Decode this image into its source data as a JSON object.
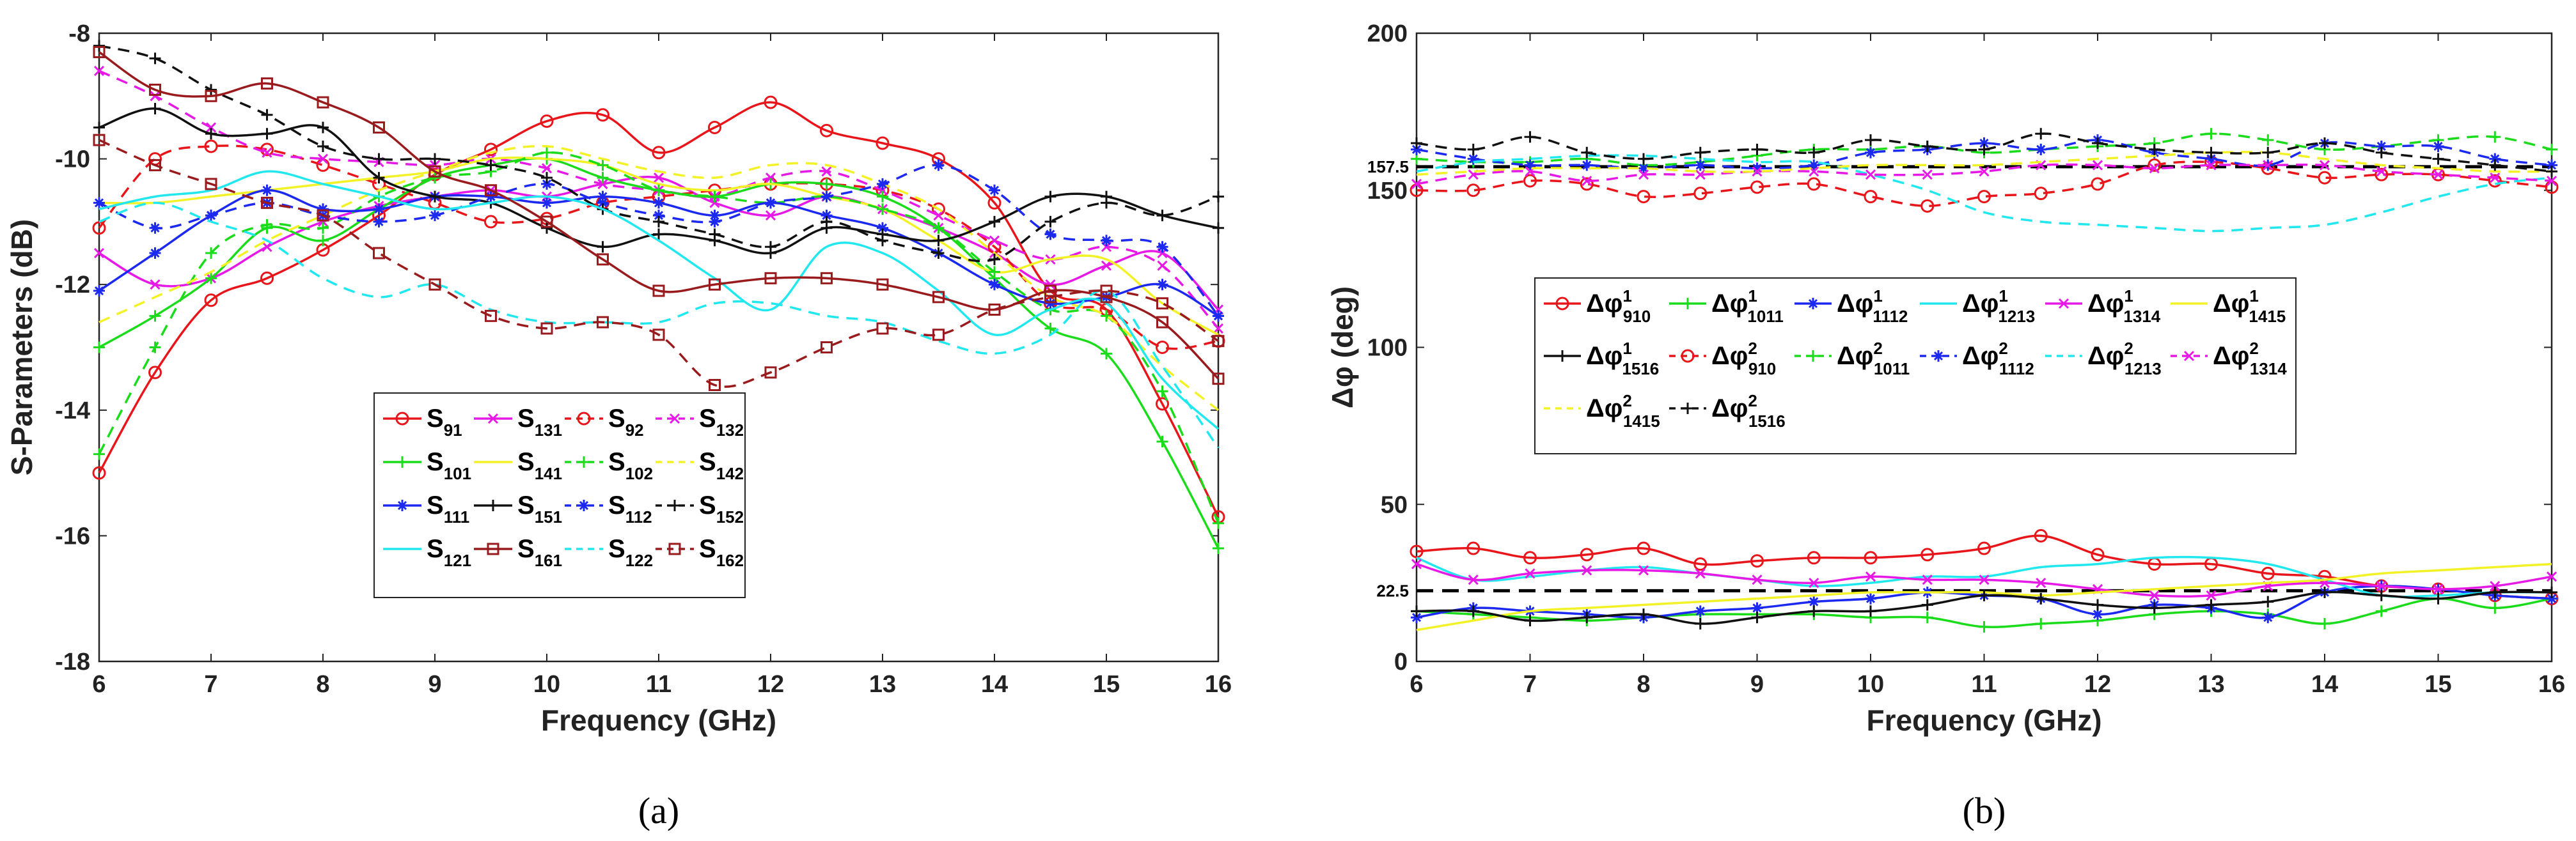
{
  "chart_data": [
    {
      "type": "line",
      "panel_label": "(a)",
      "xlabel": "Frequency (GHz)",
      "ylabel": "S-Parameters (dB)",
      "xlim": [
        6,
        16
      ],
      "ylim": [
        -18,
        -8
      ],
      "xticks": [
        6,
        7,
        8,
        9,
        10,
        11,
        12,
        13,
        14,
        15,
        16
      ],
      "yticks": [
        -18,
        -16,
        -14,
        -12,
        -10,
        -8
      ],
      "legend_position": "bottom-center",
      "x": [
        6,
        6.5,
        7,
        7.5,
        8,
        8.5,
        9,
        9.5,
        10,
        10.5,
        11,
        11.5,
        12,
        12.5,
        13,
        13.5,
        14,
        14.5,
        15,
        15.5,
        16
      ],
      "series": [
        {
          "name": "S",
          "sub": "91",
          "color": "#e8161b",
          "dash": "solid",
          "marker": "circle",
          "values": [
            -15.0,
            -13.4,
            -12.25,
            -11.9,
            -11.45,
            -10.9,
            -10.25,
            -9.85,
            -9.4,
            -9.3,
            -9.9,
            -9.5,
            -9.1,
            -9.55,
            -9.75,
            -10.0,
            -10.7,
            -12.1,
            -12.4,
            -13.9,
            -15.7
          ]
        },
        {
          "name": "S",
          "sub": "131",
          "color": "#e619e6",
          "dash": "solid",
          "marker": "x",
          "values": [
            -11.5,
            -12.0,
            -11.9,
            -11.4,
            -11.0,
            -10.75,
            -10.6,
            -10.5,
            -10.6,
            -10.4,
            -10.3,
            -10.7,
            -10.9,
            -10.6,
            -10.8,
            -11.1,
            -11.5,
            -12.0,
            -11.7,
            -11.5,
            -12.4
          ]
        },
        {
          "name": "S",
          "sub": "92",
          "color": "#e8161b",
          "dash": "dashed",
          "marker": "circle",
          "values": [
            -11.1,
            -10.0,
            -9.8,
            -9.85,
            -10.1,
            -10.4,
            -10.7,
            -11.0,
            -10.95,
            -10.7,
            -10.6,
            -10.5,
            -10.4,
            -10.4,
            -10.5,
            -10.8,
            -11.4,
            -12.3,
            -12.4,
            -13.0,
            -12.9
          ]
        },
        {
          "name": "S",
          "sub": "132",
          "color": "#e619e6",
          "dash": "dashed",
          "marker": "x",
          "values": [
            -8.6,
            -9.0,
            -9.5,
            -9.9,
            -10.0,
            -10.05,
            -10.1,
            -10.0,
            -10.15,
            -10.4,
            -10.5,
            -10.6,
            -10.3,
            -10.2,
            -10.5,
            -10.9,
            -11.3,
            -11.6,
            -11.4,
            -11.7,
            -12.7
          ]
        },
        {
          "name": "S",
          "sub": "101",
          "color": "#1adc1a",
          "dash": "solid",
          "marker": "plus",
          "values": [
            -13.0,
            -12.5,
            -11.9,
            -11.1,
            -11.3,
            -10.8,
            -10.3,
            -10.1,
            -10.0,
            -10.3,
            -10.5,
            -10.6,
            -10.4,
            -10.4,
            -10.6,
            -11.1,
            -11.9,
            -12.7,
            -13.1,
            -14.5,
            -16.2
          ]
        },
        {
          "name": "S",
          "sub": "141",
          "color": "#f2f226",
          "dash": "solid",
          "marker": "none",
          "values": [
            -10.7,
            -10.7,
            -10.6,
            -10.5,
            -10.4,
            -10.3,
            -10.2,
            -10.0,
            -10.0,
            -10.1,
            -10.4,
            -10.5,
            -10.4,
            -10.6,
            -10.8,
            -11.3,
            -11.8,
            -11.6,
            -11.6,
            -12.3,
            -12.8
          ]
        },
        {
          "name": "S",
          "sub": "102",
          "color": "#1adc1a",
          "dash": "dashed",
          "marker": "plus",
          "values": [
            -14.7,
            -13.0,
            -11.5,
            -11.05,
            -11.1,
            -10.6,
            -10.3,
            -10.2,
            -9.9,
            -10.1,
            -10.5,
            -10.6,
            -10.7,
            -10.6,
            -10.8,
            -11.1,
            -11.8,
            -12.4,
            -12.5,
            -13.7,
            -15.8
          ]
        },
        {
          "name": "S",
          "sub": "142",
          "color": "#f2f226",
          "dash": "dashed",
          "marker": "none",
          "values": [
            -12.6,
            -12.2,
            -11.8,
            -11.3,
            -10.9,
            -10.5,
            -10.2,
            -9.9,
            -9.8,
            -10.0,
            -10.2,
            -10.3,
            -10.1,
            -10.1,
            -10.4,
            -10.8,
            -11.5,
            -12.2,
            -12.5,
            -13.3,
            -14.0
          ]
        },
        {
          "name": "S",
          "sub": "111",
          "color": "#1c29f0",
          "dash": "solid",
          "marker": "asterisk",
          "values": [
            -12.1,
            -11.5,
            -10.9,
            -10.5,
            -10.8,
            -10.8,
            -10.6,
            -10.6,
            -10.7,
            -10.6,
            -10.7,
            -10.9,
            -10.7,
            -10.9,
            -11.1,
            -11.5,
            -12.0,
            -12.3,
            -12.2,
            -12.0,
            -12.5
          ]
        },
        {
          "name": "S",
          "sub": "151",
          "color": "#111111",
          "dash": "solid",
          "marker": "plus",
          "values": [
            -9.5,
            -9.2,
            -9.6,
            -9.6,
            -9.5,
            -10.3,
            -10.6,
            -10.7,
            -11.1,
            -11.4,
            -11.2,
            -11.3,
            -11.5,
            -11.1,
            -11.2,
            -11.3,
            -11.0,
            -10.6,
            -10.6,
            -10.9,
            -11.1
          ]
        },
        {
          "name": "S",
          "sub": "112",
          "color": "#1c29f0",
          "dash": "dashed",
          "marker": "asterisk",
          "values": [
            -10.7,
            -11.1,
            -10.9,
            -10.7,
            -10.9,
            -11.0,
            -10.9,
            -10.6,
            -10.4,
            -10.7,
            -10.9,
            -11.0,
            -10.7,
            -10.6,
            -10.4,
            -10.1,
            -10.5,
            -11.2,
            -11.3,
            -11.4,
            -12.5
          ]
        },
        {
          "name": "S",
          "sub": "152",
          "color": "#111111",
          "dash": "dashed",
          "marker": "plus",
          "values": [
            -8.2,
            -8.4,
            -8.9,
            -9.3,
            -9.8,
            -10.0,
            -10.0,
            -10.1,
            -10.3,
            -10.8,
            -11.0,
            -11.2,
            -11.4,
            -11.0,
            -11.3,
            -11.5,
            -11.6,
            -11.0,
            -10.7,
            -10.9,
            -10.6
          ]
        },
        {
          "name": "S",
          "sub": "121",
          "color": "#21e8ee",
          "dash": "solid",
          "marker": "none",
          "values": [
            -10.8,
            -10.6,
            -10.5,
            -10.2,
            -10.4,
            -10.6,
            -10.8,
            -10.7,
            -10.6,
            -10.8,
            -11.3,
            -11.9,
            -12.4,
            -11.4,
            -11.5,
            -12.1,
            -12.8,
            -12.4,
            -12.3,
            -13.5,
            -14.3
          ]
        },
        {
          "name": "S",
          "sub": "161",
          "color": "#9a1b1d",
          "dash": "solid",
          "marker": "square",
          "values": [
            -8.3,
            -8.9,
            -9.0,
            -8.8,
            -9.1,
            -9.5,
            -10.2,
            -10.5,
            -11.0,
            -11.6,
            -12.1,
            -12.0,
            -11.9,
            -11.9,
            -12.0,
            -12.2,
            -12.4,
            -12.1,
            -12.2,
            -12.6,
            -13.5
          ]
        },
        {
          "name": "S",
          "sub": "122",
          "color": "#21e8ee",
          "dash": "dashed",
          "marker": "none",
          "values": [
            -11.0,
            -10.7,
            -11.0,
            -11.3,
            -11.9,
            -12.2,
            -12.0,
            -12.4,
            -12.6,
            -12.6,
            -12.6,
            -12.3,
            -12.3,
            -12.5,
            -12.6,
            -12.9,
            -13.1,
            -12.8,
            -12.1,
            -13.3,
            -14.6
          ]
        },
        {
          "name": "S",
          "sub": "162",
          "color": "#9a1b1d",
          "dash": "dashed",
          "marker": "square",
          "values": [
            -9.7,
            -10.1,
            -10.4,
            -10.7,
            -10.9,
            -11.5,
            -12.0,
            -12.5,
            -12.7,
            -12.6,
            -12.8,
            -13.6,
            -13.4,
            -13.0,
            -12.7,
            -12.8,
            -12.4,
            -12.2,
            -12.1,
            -12.3,
            -12.9
          ]
        }
      ]
    },
    {
      "type": "line",
      "panel_label": "(b)",
      "xlabel": "Frequency (GHz)",
      "ylabel": "Δφ (deg)",
      "xlim": [
        6,
        16
      ],
      "ylim": [
        0,
        200
      ],
      "xticks": [
        6,
        7,
        8,
        9,
        10,
        11,
        12,
        13,
        14,
        15,
        16
      ],
      "yticks": [
        0,
        50,
        100,
        150,
        200
      ],
      "legend_position": "middle-left",
      "reference_lines": [
        {
          "value": 157.5,
          "label": "157.5"
        },
        {
          "value": 22.5,
          "label": "22.5"
        }
      ],
      "x": [
        6,
        6.5,
        7,
        7.5,
        8,
        8.5,
        9,
        9.5,
        10,
        10.5,
        11,
        11.5,
        12,
        12.5,
        13,
        13.5,
        14,
        14.5,
        15,
        15.5,
        16
      ],
      "series": [
        {
          "name": "Δφ",
          "sup": "1",
          "sub": "910",
          "color": "#e8161b",
          "dash": "solid",
          "marker": "circle",
          "values": [
            35,
            36,
            33,
            34,
            36,
            31,
            32,
            33,
            33,
            34,
            36,
            40,
            34,
            31,
            31,
            28,
            27,
            24,
            23,
            21,
            20
          ]
        },
        {
          "name": "Δφ",
          "sup": "1",
          "sub": "1011",
          "color": "#1adc1a",
          "dash": "solid",
          "marker": "plus",
          "values": [
            16,
            15,
            14,
            13,
            14,
            15,
            15,
            15,
            14,
            14,
            11,
            12,
            13,
            15,
            16,
            15,
            12,
            16,
            20,
            17,
            20
          ]
        },
        {
          "name": "Δφ",
          "sup": "1",
          "sub": "1112",
          "color": "#1c29f0",
          "dash": "solid",
          "marker": "asterisk",
          "values": [
            14,
            17,
            16,
            15,
            14,
            16,
            17,
            19,
            20,
            22,
            21,
            20,
            15,
            18,
            17,
            14,
            22,
            24,
            23,
            21,
            20
          ]
        },
        {
          "name": "Δφ",
          "sup": "1",
          "sub": "1213",
          "color": "#21e8ee",
          "dash": "solid",
          "marker": "none",
          "values": [
            33,
            26,
            27,
            29,
            30,
            28,
            26,
            24,
            25,
            27,
            27,
            30,
            31,
            33,
            33,
            31,
            26,
            21,
            21,
            22,
            22
          ]
        },
        {
          "name": "Δφ",
          "sup": "1",
          "sub": "1314",
          "color": "#e619e6",
          "dash": "solid",
          "marker": "x",
          "values": [
            31,
            26,
            28,
            29,
            29,
            28,
            26,
            25,
            27,
            26,
            26,
            25,
            23,
            21,
            21,
            24,
            25,
            24,
            23,
            24,
            27
          ]
        },
        {
          "name": "Δφ",
          "sup": "1",
          "sub": "1415",
          "color": "#f2f226",
          "dash": "solid",
          "marker": "none",
          "values": [
            10,
            13,
            16,
            17,
            18,
            19,
            20,
            21,
            22,
            22,
            22,
            21,
            22,
            23,
            24,
            25,
            26,
            28,
            29,
            30,
            31
          ]
        },
        {
          "name": "Δφ",
          "sup": "1",
          "sub": "1516",
          "color": "#111111",
          "dash": "solid",
          "marker": "plus",
          "values": [
            16,
            16,
            13,
            14,
            15,
            12,
            14,
            16,
            16,
            18,
            21,
            20,
            18,
            17,
            18,
            19,
            22,
            21,
            20,
            22,
            22
          ]
        },
        {
          "name": "Δφ",
          "sup": "2",
          "sub": "910",
          "color": "#e8161b",
          "dash": "dashed",
          "marker": "circle",
          "values": [
            150,
            150,
            153,
            152,
            148,
            149,
            151,
            152,
            148,
            145,
            148,
            149,
            152,
            158,
            159,
            157,
            154,
            155,
            155,
            153,
            151
          ]
        },
        {
          "name": "Δφ",
          "sup": "2",
          "sub": "1011",
          "color": "#1adc1a",
          "dash": "dashed",
          "marker": "plus",
          "values": [
            160,
            159,
            159,
            160,
            158,
            159,
            161,
            163,
            163,
            164,
            162,
            163,
            164,
            165,
            168,
            166,
            163,
            164,
            166,
            167,
            163
          ]
        },
        {
          "name": "Δφ",
          "sup": "2",
          "sub": "1112",
          "color": "#1c29f0",
          "dash": "dashed",
          "marker": "asterisk",
          "values": [
            163,
            160,
            158,
            158,
            157,
            158,
            157,
            158,
            162,
            163,
            165,
            163,
            166,
            162,
            160,
            158,
            165,
            164,
            164,
            160,
            158
          ]
        },
        {
          "name": "Δφ",
          "sup": "2",
          "sub": "1213",
          "color": "#21e8ee",
          "dash": "dashed",
          "marker": "none",
          "values": [
            156,
            159,
            160,
            161,
            161,
            160,
            159,
            159,
            155,
            150,
            143,
            140,
            139,
            138,
            137,
            138,
            139,
            143,
            148,
            152,
            154
          ]
        },
        {
          "name": "Δφ",
          "sup": "2",
          "sub": "1314",
          "color": "#e619e6",
          "dash": "dashed",
          "marker": "x",
          "values": [
            152,
            155,
            156,
            153,
            155,
            155,
            156,
            156,
            155,
            155,
            156,
            158,
            158,
            157,
            158,
            158,
            158,
            156,
            155,
            154,
            153
          ]
        },
        {
          "name": "Δφ",
          "sup": "2",
          "sub": "1415",
          "color": "#f2f226",
          "dash": "dashed",
          "marker": "none",
          "values": [
            155,
            156,
            157,
            157,
            157,
            156,
            156,
            157,
            158,
            158,
            158,
            159,
            160,
            161,
            162,
            162,
            160,
            158,
            157,
            156,
            156
          ]
        },
        {
          "name": "Δφ",
          "sup": "2",
          "sub": "1516",
          "color": "#111111",
          "dash": "dashed",
          "marker": "plus",
          "values": [
            165,
            163,
            167,
            162,
            160,
            162,
            163,
            162,
            166,
            164,
            163,
            168,
            165,
            163,
            162,
            162,
            165,
            162,
            160,
            158,
            156
          ]
        }
      ]
    }
  ]
}
